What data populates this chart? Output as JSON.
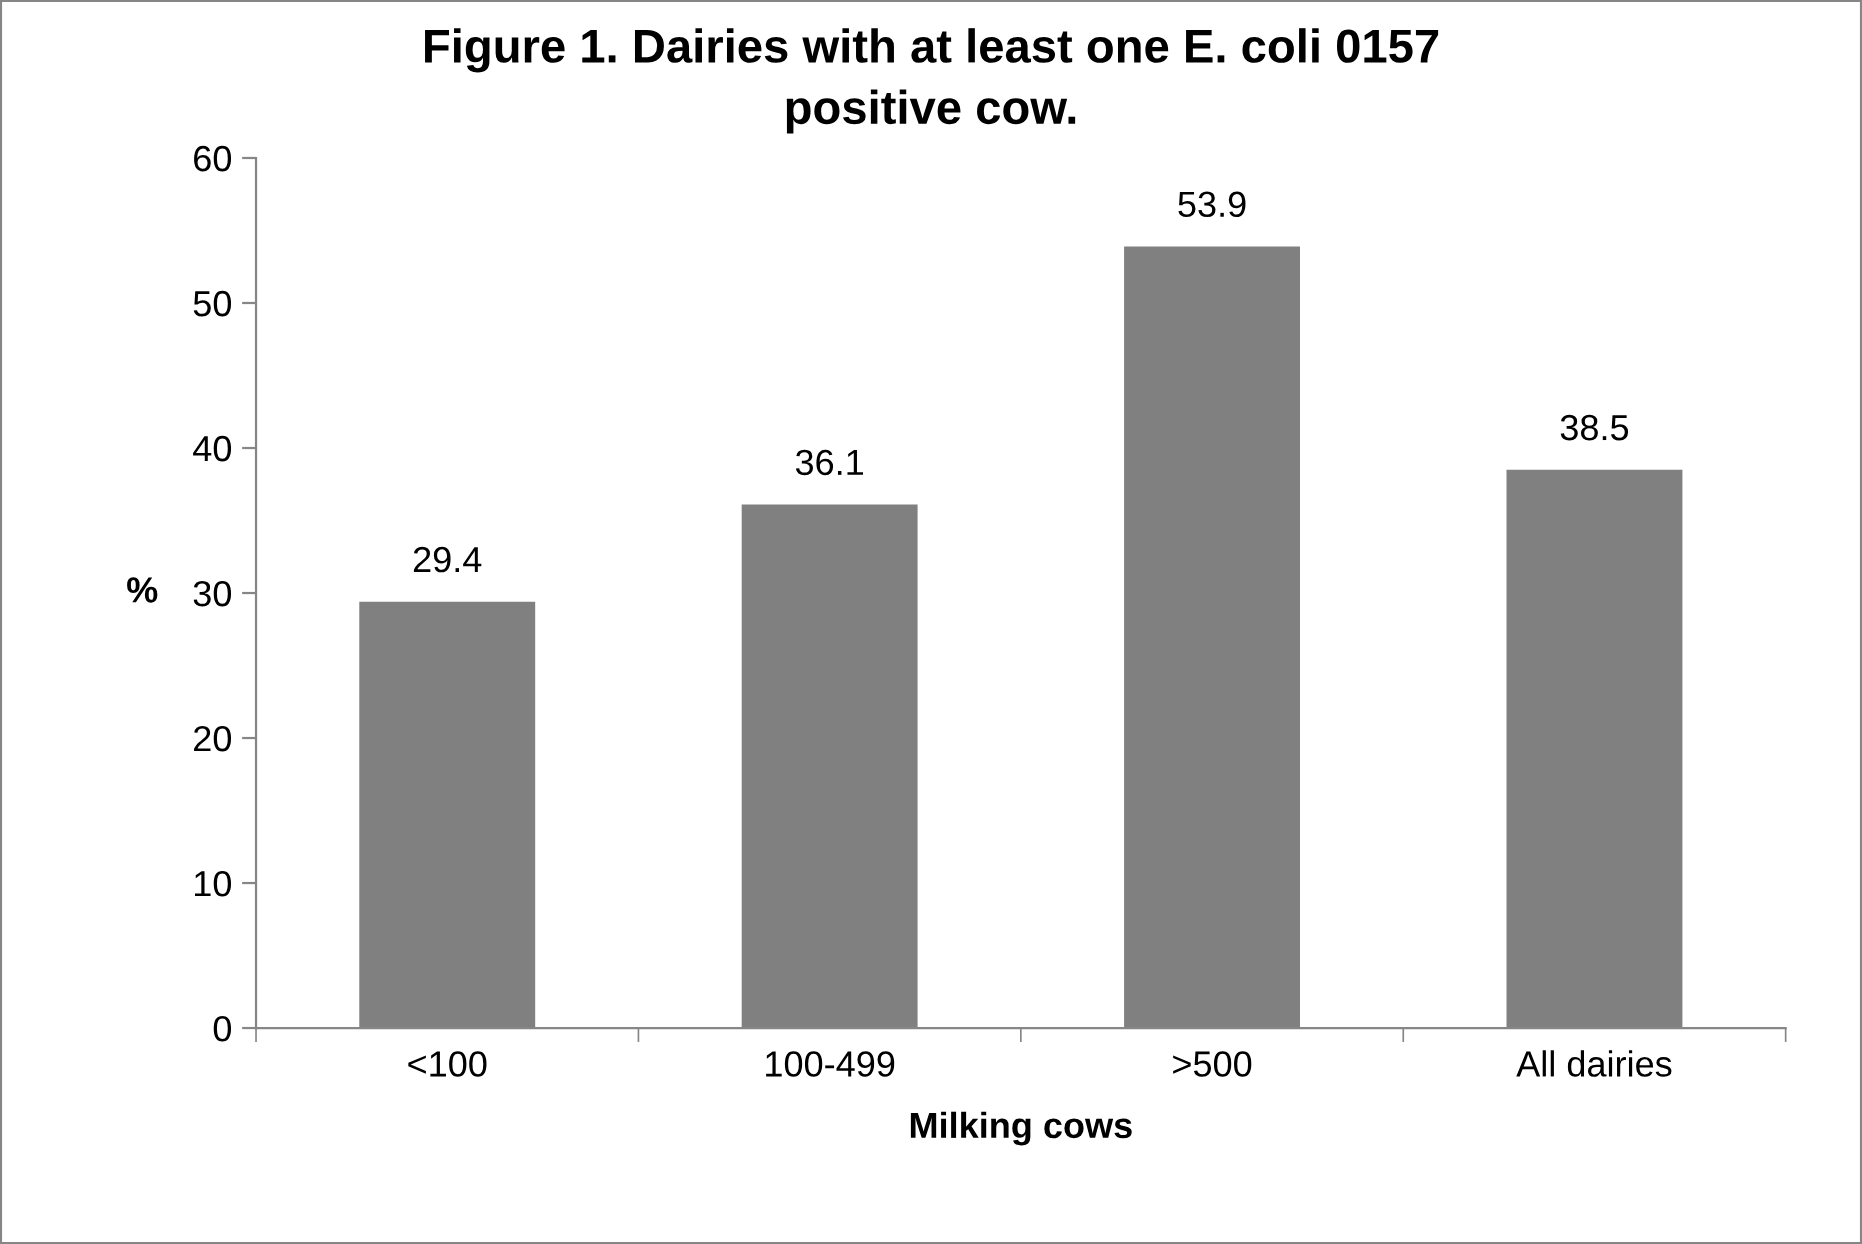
{
  "chart_data": {
    "type": "bar",
    "title": "Figure 1. Dairies with at least one E. coli 0157 positive cow.",
    "xlabel": "Milking cows",
    "ylabel": "%",
    "categories": [
      "<100",
      "100-499",
      ">500",
      "All dairies"
    ],
    "values": [
      29.4,
      36.1,
      53.9,
      38.5
    ],
    "color": "#808080",
    "ylim": [
      0,
      60
    ],
    "yticks": [
      0,
      10,
      20,
      30,
      40,
      50,
      60
    ],
    "grid": false,
    "data_labels": true
  }
}
